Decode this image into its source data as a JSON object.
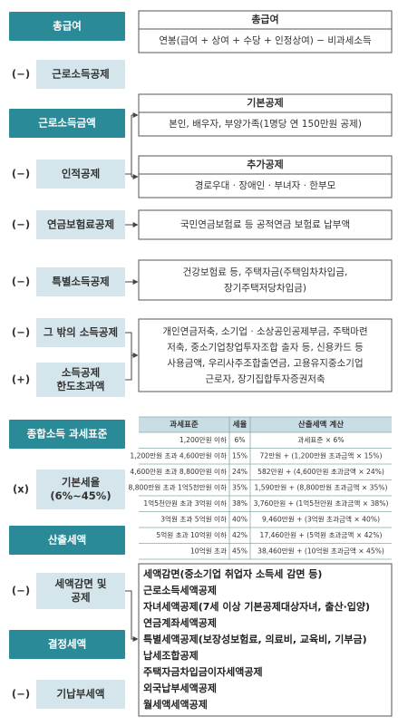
{
  "steps": [
    {
      "label": [
        "총급여"
      ]
    },
    {
      "sign": "(−)",
      "label": [
        "근로소득공제"
      ]
    },
    {
      "label": [
        "근로소득금액"
      ]
    },
    {
      "sign": "(−)",
      "label": [
        "인적공제"
      ]
    },
    {
      "sign": "(−)",
      "label": [
        "연금보험료공제"
      ]
    },
    {
      "sign": "(−)",
      "label": [
        "특별소득공제"
      ]
    },
    {
      "sign": "(−)",
      "label": [
        "그 밖의 소득공제"
      ]
    },
    {
      "sign": "(+)",
      "label": [
        "소득공제",
        "한도초과액"
      ]
    },
    {
      "label": [
        "종합소득 과세표준"
      ]
    },
    {
      "sign": "(x)",
      "label": [
        "기본세율",
        "(6%~45%)"
      ]
    },
    {
      "label": [
        "산출세액"
      ]
    },
    {
      "sign": "(−)",
      "label": [
        "세액감면 및",
        "공제"
      ]
    },
    {
      "label": [
        "결정세액"
      ]
    },
    {
      "sign": "(−)",
      "label": [
        "기납부세액"
      ]
    }
  ],
  "notes": [
    {
      "title": "총급여",
      "lines": [
        "연봉(급여 + 상여 + 수당 + 인정상여) − 비과세소득"
      ]
    },
    {
      "title": "기본공제",
      "lines": [
        "본인, 배우자, 부양가족(1명당 연 150만원 공제)"
      ]
    },
    {
      "title": "추가공제",
      "lines": [
        "경로우대 · 장애인 · 부녀자 · 한부모"
      ]
    },
    {
      "lines": [
        "국민연금보험료 등 공적연금 보험료 납부액"
      ]
    },
    {
      "lines": [
        "건강보험료 등, 주택자금(주택임차차입금,",
        "장기주택저당차입금)"
      ]
    },
    {
      "lines": [
        "개인연금저축, 소기업 · 소상공인공제부금, 주택마련",
        "저축, 중소기업창업투자조합 출자 등, 신용카드 등",
        "사용금액, 우리사주조합출연금, 고용유지중소기업",
        "근로자, 장기집합투자증권저축"
      ]
    }
  ],
  "tax_table": {
    "header": [
      "과세표준",
      "세율",
      "산출세액 계산"
    ],
    "rows": [
      [
        "1,200만원 이하",
        "6%",
        "과세표준 × 6%"
      ],
      [
        "1,200만원 초과 4,600만원 이하",
        "15%",
        "72만원 + (1,200만원 초과금액 × 15%)"
      ],
      [
        "4,600만원 초과 8,800만원 이하",
        "24%",
        "582만원 + (4,600만원 초과금액 × 24%)"
      ],
      [
        "8,800만원 초과 1억5천만원 이하",
        "35%",
        "1,590만원 + (8,800만원 초과금액 × 35%)"
      ],
      [
        "1억5천만원 초과 3억원 이하",
        "38%",
        "3,760만원 + (1억5천만원 초과금액 × 38%)"
      ],
      [
        "3억원 초과 5억원 이하",
        "40%",
        "9,460만원 + (3억원 초과금액 × 40%)"
      ],
      [
        "5억원 초과 10억원 이하",
        "42%",
        "17,460만원 + (5억원 초과금액 × 42%)"
      ],
      [
        "10억원 초과",
        "45%",
        "38,460만원 + (10억원 초과금액 × 45%)"
      ]
    ]
  },
  "tax_credits": [
    "세액감면(중소기업 취업자 소득세 감면 등)",
    "근로소득세액공제",
    "자녀세액공제(7세 이상 기본공제대상자녀, 출산·입양)",
    "연금계좌세액공제",
    "특별세액공제(보장성보험료, 의료비, 교육비, 기부금)",
    "납세조합공제",
    "주택자금차입금이자세액공제",
    "외국납부세액공제",
    "월세액세액공제"
  ]
}
